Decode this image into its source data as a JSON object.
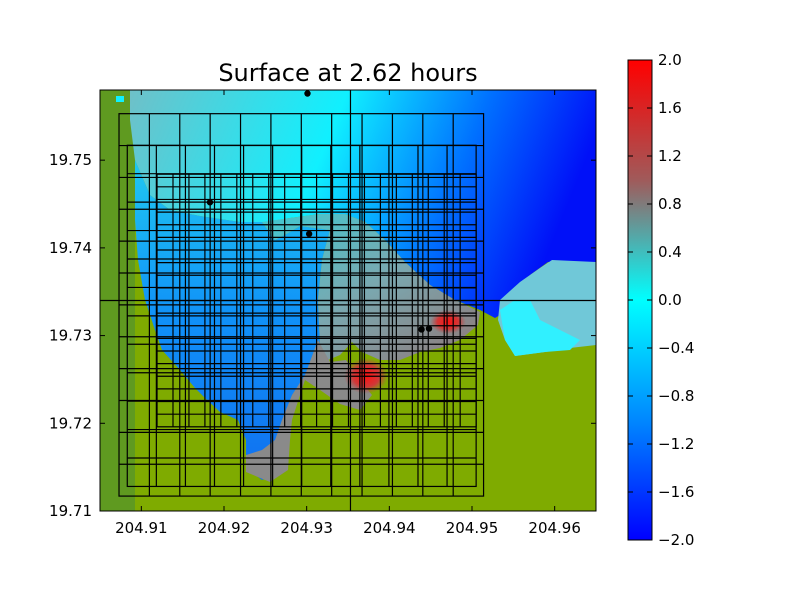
{
  "chart_data": {
    "type": "heatmap",
    "title": "Surface at 2.62 hours",
    "xlabel": "",
    "ylabel": "",
    "xlim": [
      204.905,
      204.965
    ],
    "ylim": [
      19.71,
      19.758
    ],
    "x_tick_labels": [
      "204.91",
      "204.92",
      "204.93",
      "204.94",
      "204.95",
      "204.96"
    ],
    "x_ticks": [
      204.91,
      204.92,
      204.93,
      204.94,
      204.95,
      204.96
    ],
    "y_tick_labels": [
      "19.71",
      "19.72",
      "19.73",
      "19.74",
      "19.75"
    ],
    "y_ticks": [
      19.71,
      19.72,
      19.73,
      19.74,
      19.75
    ],
    "colorbar": {
      "range": [
        -2.0,
        2.0
      ],
      "colormap": "blue-cyan-gray-red",
      "tick_labels": [
        "2.0",
        "1.6",
        "1.2",
        "0.8",
        "0.4",
        "0.0",
        "−0.4",
        "−0.8",
        "−1.2",
        "−1.6",
        "−2.0"
      ],
      "ticks": [
        2.0,
        1.6,
        1.2,
        0.8,
        0.4,
        0.0,
        -0.4,
        -0.8,
        -1.2,
        -1.6,
        -2.0
      ]
    },
    "gauges": [
      {
        "x": 204.9301,
        "y": 19.7576
      },
      {
        "x": 204.9183,
        "y": 19.7452
      },
      {
        "x": 204.9303,
        "y": 19.7416
      },
      {
        "x": 204.9439,
        "y": 19.7307
      },
      {
        "x": 204.9448,
        "y": 19.7308
      }
    ],
    "grid_levels": [
      {
        "x": [
          204.9073,
          204.9514
        ],
        "y": [
          19.7117,
          19.7553
        ],
        "nx": 12,
        "ny": 12
      },
      {
        "x": [
          204.9083,
          204.9505
        ],
        "y": [
          19.7128,
          19.7517
        ],
        "nx": 12,
        "ny": 12
      },
      {
        "x": [
          204.9119,
          204.9505
        ],
        "y": [
          19.7196,
          19.7484
        ],
        "nx": 20,
        "ny": 20
      }
    ],
    "domain_lines": {
      "x": 204.9353,
      "y": 19.734
    },
    "colors": {
      "land": "#80a800",
      "deep_negative": "#0008f8",
      "zero": "#00ffff",
      "positive_mid": "#888888",
      "max_positive": "#ff0000"
    }
  }
}
